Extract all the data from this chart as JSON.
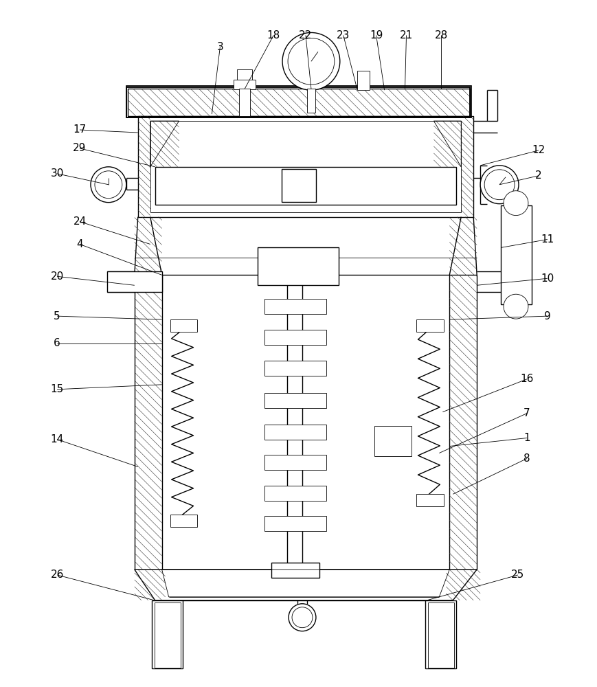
{
  "bg_color": "#ffffff",
  "lc": "#000000",
  "lw": 1.0,
  "tlw": 0.6,
  "hlw": 0.4,
  "figsize": [
    8.69,
    10.0
  ],
  "dpi": 100
}
